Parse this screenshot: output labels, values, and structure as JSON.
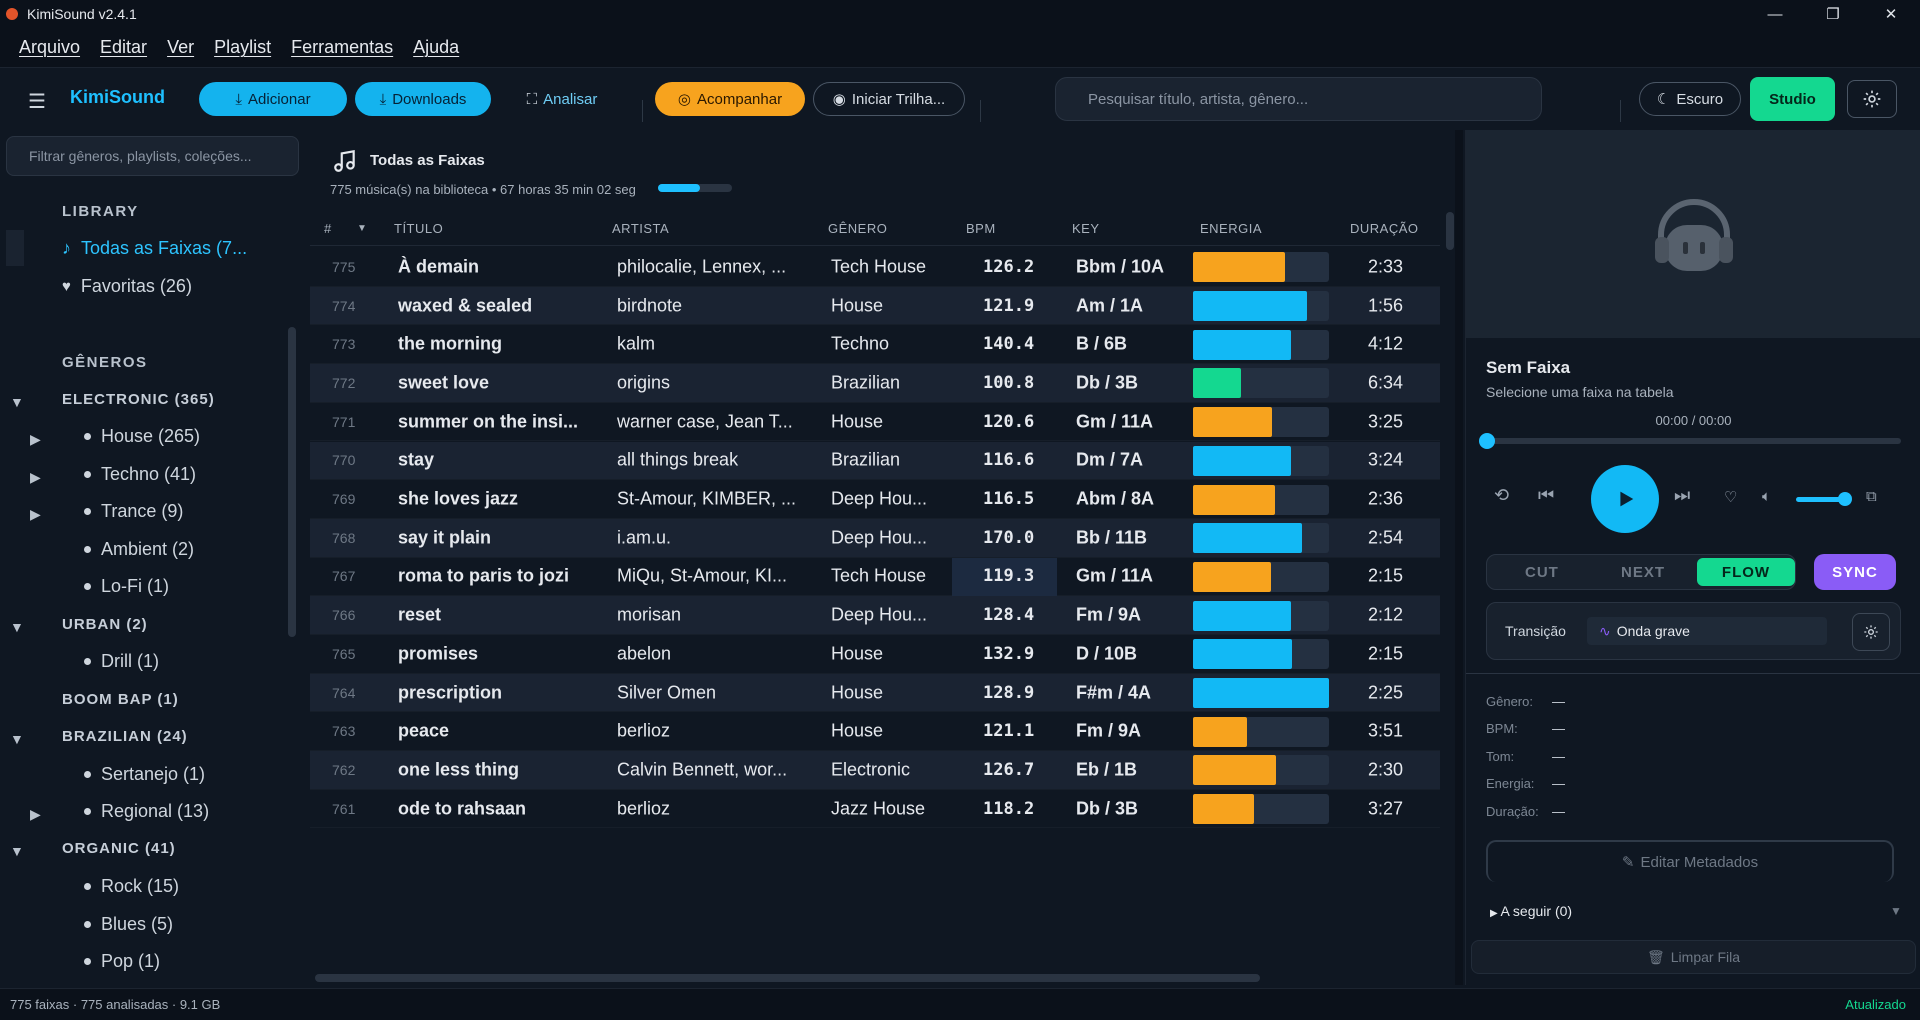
{
  "window": {
    "title": "KimiSound v2.4.1",
    "minimize": "—",
    "maximize": "❐",
    "close": "✕"
  },
  "menu": [
    "Arquivo",
    "Editar",
    "Ver",
    "Playlist",
    "Ferramentas",
    "Ajuda"
  ],
  "toolbar": {
    "brand": "KimiSound",
    "add": "Adicionar",
    "downloads": "Downloads",
    "analyze": "Analisar",
    "follow": "Acompanhar",
    "start_track": "Iniciar Trilha...",
    "search_placeholder": "Pesquisar título, artista, gênero...",
    "theme": "Escuro",
    "studio": "Studio"
  },
  "sidebar": {
    "filter_placeholder": "Filtrar gêneros, playlists, coleções...",
    "library_title": "LIBRARY",
    "library": [
      {
        "label": "Todas as Faixas  (7...",
        "icon": "♪"
      },
      {
        "label": "Favoritas  (26)",
        "icon": "♥"
      }
    ],
    "genres_title": "GÊNEROS",
    "groups": [
      {
        "name": "ELECTRONIC  (365)",
        "items": [
          "House  (265)",
          "Techno  (41)",
          "Trance  (9)",
          "Ambient  (2)",
          "Lo-Fi  (1)"
        ]
      },
      {
        "name": "URBAN  (2)",
        "items": [
          "Drill  (1)"
        ]
      },
      {
        "name": "BOOM BAP  (1)",
        "items": []
      },
      {
        "name": "BRAZILIAN  (24)",
        "items": [
          "Sertanejo  (1)",
          "Regional  (13)"
        ]
      },
      {
        "name": "ORGANIC  (41)",
        "items": [
          "Rock  (15)",
          "Blues  (5)",
          "Pop  (1)"
        ]
      }
    ]
  },
  "main": {
    "title": "Todas as Faixas",
    "subtitle": "775 música(s) na biblioteca • 67 horas 35 min 02 seg",
    "progress": 0.57,
    "columns": {
      "num": "#",
      "title": "TÍTULO",
      "artist": "ARTISTA",
      "genre": "GÊNERO",
      "bpm": "BPM",
      "key": "KEY",
      "energy": "ENERGIA",
      "duration": "DURAÇÃO"
    },
    "rows": [
      {
        "num": "775",
        "title": "À demain",
        "artist": "philocalie, Lennex, ...",
        "genre": "Tech House",
        "bpm": "126.2",
        "key": "Bbm / 10A",
        "energy": 0.68,
        "color": "#f7a31e",
        "duration": "2:33"
      },
      {
        "num": "774",
        "title": "waxed & sealed",
        "artist": "birdnote",
        "genre": "House",
        "bpm": "121.9",
        "key": "Am / 1A",
        "energy": 0.84,
        "color": "#12b9f5",
        "duration": "1:56"
      },
      {
        "num": "773",
        "title": "the morning",
        "artist": "kalm",
        "genre": "Techno",
        "bpm": "140.4",
        "key": "B / 6B",
        "energy": 0.72,
        "color": "#12b9f5",
        "duration": "4:12"
      },
      {
        "num": "772",
        "title": "sweet love",
        "artist": "origins",
        "genre": "Brazilian",
        "bpm": "100.8",
        "key": "Db / 3B",
        "energy": 0.35,
        "color": "#14d890",
        "duration": "6:34"
      },
      {
        "num": "771",
        "title": "summer on the insi...",
        "artist": "warner case, Jean T...",
        "genre": "House",
        "bpm": "120.6",
        "key": "Gm / 11A",
        "energy": 0.58,
        "color": "#f7a31e",
        "duration": "3:25"
      },
      {
        "num": "770",
        "title": "stay",
        "artist": "all things break",
        "genre": "Brazilian",
        "bpm": "116.6",
        "key": "Dm / 7A",
        "energy": 0.72,
        "color": "#12b9f5",
        "duration": "3:24"
      },
      {
        "num": "769",
        "title": "she loves jazz",
        "artist": "St-Amour, KIMBER, ...",
        "genre": "Deep Hou...",
        "bpm": "116.5",
        "key": "Abm / 8A",
        "energy": 0.6,
        "color": "#f7a31e",
        "duration": "2:36"
      },
      {
        "num": "768",
        "title": "say it plain",
        "artist": "i.am.u.",
        "genre": "Deep Hou...",
        "bpm": "170.0",
        "key": "Bb / 11B",
        "energy": 0.8,
        "color": "#12b9f5",
        "duration": "2:54"
      },
      {
        "num": "767",
        "title": "roma to paris to jozi",
        "artist": "MiQu, St-Amour, KI...",
        "genre": "Tech House",
        "bpm": "119.3",
        "key": "Gm / 11A",
        "energy": 0.57,
        "color": "#f7a31e",
        "duration": "2:15"
      },
      {
        "num": "766",
        "title": "reset",
        "artist": "morisan",
        "genre": "Deep Hou...",
        "bpm": "128.4",
        "key": "Fm / 9A",
        "energy": 0.72,
        "color": "#12b9f5",
        "duration": "2:12"
      },
      {
        "num": "765",
        "title": "promises",
        "artist": "abelon",
        "genre": "House",
        "bpm": "132.9",
        "key": "D / 10B",
        "energy": 0.73,
        "color": "#12b9f5",
        "duration": "2:15"
      },
      {
        "num": "764",
        "title": "prescription",
        "artist": "Silver Omen",
        "genre": "House",
        "bpm": "128.9",
        "key": "F#m / 4A",
        "energy": 1.0,
        "color": "#12b9f5",
        "duration": "2:25"
      },
      {
        "num": "763",
        "title": "peace",
        "artist": "berlioz",
        "genre": "House",
        "bpm": "121.1",
        "key": "Fm / 9A",
        "energy": 0.4,
        "color": "#f7a31e",
        "duration": "3:51"
      },
      {
        "num": "762",
        "title": "one less thing",
        "artist": "Calvin Bennett, wor...",
        "genre": "Electronic",
        "bpm": "126.7",
        "key": "Eb / 1B",
        "energy": 0.61,
        "color": "#f7a31e",
        "duration": "2:30"
      },
      {
        "num": "761",
        "title": "ode to rahsaan",
        "artist": "berlioz",
        "genre": "Jazz House",
        "bpm": "118.2",
        "key": "Db / 3B",
        "energy": 0.45,
        "color": "#f7a31e",
        "duration": "3:27"
      }
    ]
  },
  "player": {
    "title": "Sem Faixa",
    "subtitle": "Selecione uma faixa na tabela",
    "time": "00:00 / 00:00",
    "modes": [
      "CUT",
      "NEXT",
      "FLOW"
    ],
    "sync": "SYNC",
    "transition_label": "Transição",
    "transition_value": "Onda grave",
    "meta": [
      {
        "k": "Gênero:",
        "v": "—"
      },
      {
        "k": "BPM:",
        "v": "—"
      },
      {
        "k": "Tom:",
        "v": "—"
      },
      {
        "k": "Energia:",
        "v": "—"
      },
      {
        "k": "Duração:",
        "v": "—"
      }
    ],
    "edit": "Editar Metadados",
    "next_up": "A seguir (0)",
    "clear": "Limpar Fila"
  },
  "status": {
    "left": "775 faixas  ·  775 analisadas  ·  9.1 GB",
    "right": "Atualizado"
  }
}
